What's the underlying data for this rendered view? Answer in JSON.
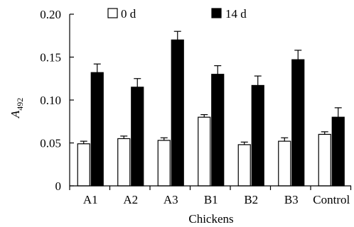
{
  "chart_data": {
    "type": "bar",
    "categories": [
      "A1",
      "A2",
      "A3",
      "B1",
      "B2",
      "B3",
      "Control"
    ],
    "series": [
      {
        "name": "0 d",
        "values": [
          0.049,
          0.055,
          0.053,
          0.08,
          0.048,
          0.052,
          0.06
        ],
        "errors": [
          0.003,
          0.003,
          0.003,
          0.003,
          0.003,
          0.004,
          0.003
        ],
        "fill": "#ffffff"
      },
      {
        "name": "14 d",
        "values": [
          0.132,
          0.115,
          0.17,
          0.13,
          0.117,
          0.147,
          0.08
        ],
        "errors": [
          0.01,
          0.01,
          0.01,
          0.01,
          0.011,
          0.011,
          0.011
        ],
        "fill": "#000000"
      }
    ],
    "title": "",
    "xlabel": "Chickens",
    "ylabel_main": "A",
    "ylabel_sub": "492",
    "ylim": [
      0,
      0.2
    ],
    "yticks": [
      "0",
      "0.05",
      "0.10",
      "0.15",
      "0.20"
    ],
    "ytick_values": [
      0,
      0.05,
      0.1,
      0.15,
      0.2
    ],
    "grid": false,
    "legend_position": "top"
  }
}
